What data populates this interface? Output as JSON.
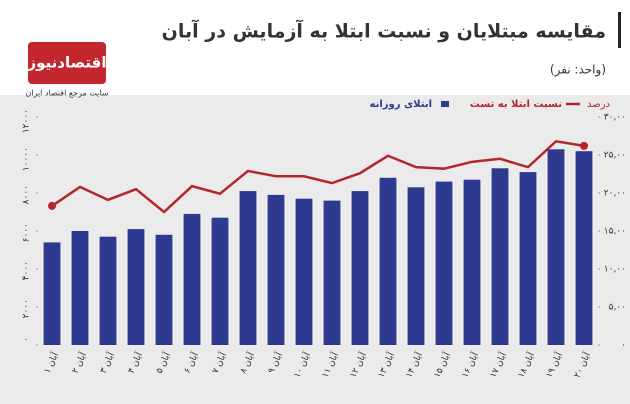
{
  "header": {
    "logo": "اقتصادنیوز",
    "tagline": "سایت مرجع اقتصاد ایران"
  },
  "chart_data": {
    "type": "bar_line",
    "title": "مقایسه مبتلایان و نسبت ابتلا به آزمایش در آبان",
    "subtitle": "(واحد: نفر)",
    "y2_label": "درصد",
    "categories": [
      "۱ آبان",
      "۲ آبان",
      "۳ آبان",
      "۴ آبان",
      "۵ آبان",
      "۶ آبان",
      "۷ آبان",
      "۸ آبان",
      "۹ آبان",
      "۱۰ آبان",
      "۱۱ آبان",
      "۱۲ آبان",
      "۱۳ آبان",
      "۱۴ آبان",
      "۱۵ آبان",
      "۱۶ آبان",
      "۱۷ آبان",
      "۱۸ آبان",
      "۱۹ آبان",
      "۲۰ آبان"
    ],
    "series": [
      {
        "name": "ابتلای روزانه",
        "color": "#2e3a8f",
        "values": [
          5400,
          6000,
          5700,
          6100,
          5800,
          6900,
          6700,
          8100,
          7900,
          7700,
          7600,
          8100,
          8800,
          8300,
          8600,
          8700,
          9300,
          9100,
          10300,
          10200
        ]
      },
      {
        "name": "نسبت ابتلا به تست",
        "color": "#b3262d",
        "axis": "y2",
        "values": [
          18.3,
          20.8,
          19.1,
          20.5,
          17.5,
          20.9,
          19.9,
          22.9,
          22.2,
          22.2,
          21.3,
          22.6,
          24.9,
          23.4,
          23.2,
          24.1,
          24.5,
          23.4,
          26.8,
          26.2
        ]
      }
    ],
    "ylim": [
      0,
      12000
    ],
    "yticks": [
      {
        "value": 0,
        "label": "۰"
      },
      {
        "value": 2000,
        "label": "۲۰۰۰"
      },
      {
        "value": 4000,
        "label": "۴۰۰۰"
      },
      {
        "value": 6000,
        "label": "۶۰۰۰"
      },
      {
        "value": 8000,
        "label": "۸۰۰۰"
      },
      {
        "value": 10000,
        "label": "۱۰۰۰۰"
      },
      {
        "value": 12000,
        "label": "۱۲۰۰۰"
      }
    ],
    "y2lim": [
      0,
      30
    ],
    "y2ticks": [
      {
        "value": 0,
        "label": "۰"
      },
      {
        "value": 5,
        "label": "۵,۰۰"
      },
      {
        "value": 10,
        "label": "۱۰,۰۰"
      },
      {
        "value": 15,
        "label": "۱۵,۰۰"
      },
      {
        "value": 20,
        "label": "۲۰,۰۰"
      },
      {
        "value": 25,
        "label": "۲۵,۰۰"
      },
      {
        "value": 30,
        "label": "۳۰,۰۰"
      }
    ],
    "grid": false
  }
}
